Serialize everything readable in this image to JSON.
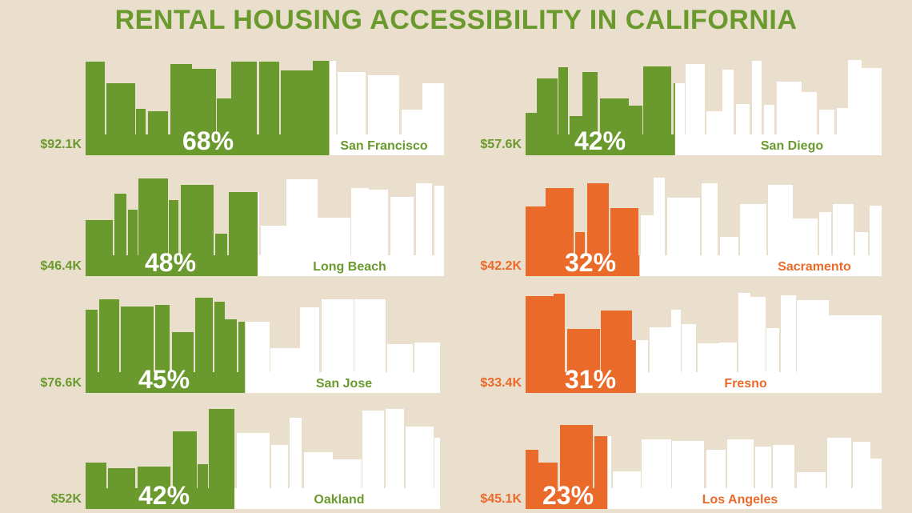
{
  "title": "RENTAL HOUSING ACCESSIBILITY IN CALIFORNIA",
  "colors": {
    "green": "#6a9a2e",
    "orange": "#ea6a2a",
    "white": "#ffffff",
    "background": "#e9dfcc"
  },
  "cities": [
    {
      "name": "San Francisco",
      "income": "$92.1K",
      "percent": "68%",
      "share": 0.68,
      "color": "green"
    },
    {
      "name": "San Diego",
      "income": "$57.6K",
      "percent": "42%",
      "share": 0.42,
      "color": "green"
    },
    {
      "name": "Long Beach",
      "income": "$46.4K",
      "percent": "48%",
      "share": 0.48,
      "color": "green"
    },
    {
      "name": "Sacramento",
      "income": "$42.2K",
      "percent": "32%",
      "share": 0.32,
      "color": "orange"
    },
    {
      "name": "San Jose",
      "income": "$76.6K",
      "percent": "45%",
      "share": 0.45,
      "color": "green"
    },
    {
      "name": "Fresno",
      "income": "$33.4K",
      "percent": "31%",
      "share": 0.31,
      "color": "orange"
    },
    {
      "name": "Oakland",
      "income": "$52K",
      "percent": "42%",
      "share": 0.42,
      "color": "green"
    },
    {
      "name": "Los Angeles",
      "income": "$45.1K",
      "percent": "23%",
      "share": 0.23,
      "color": "orange"
    }
  ]
}
